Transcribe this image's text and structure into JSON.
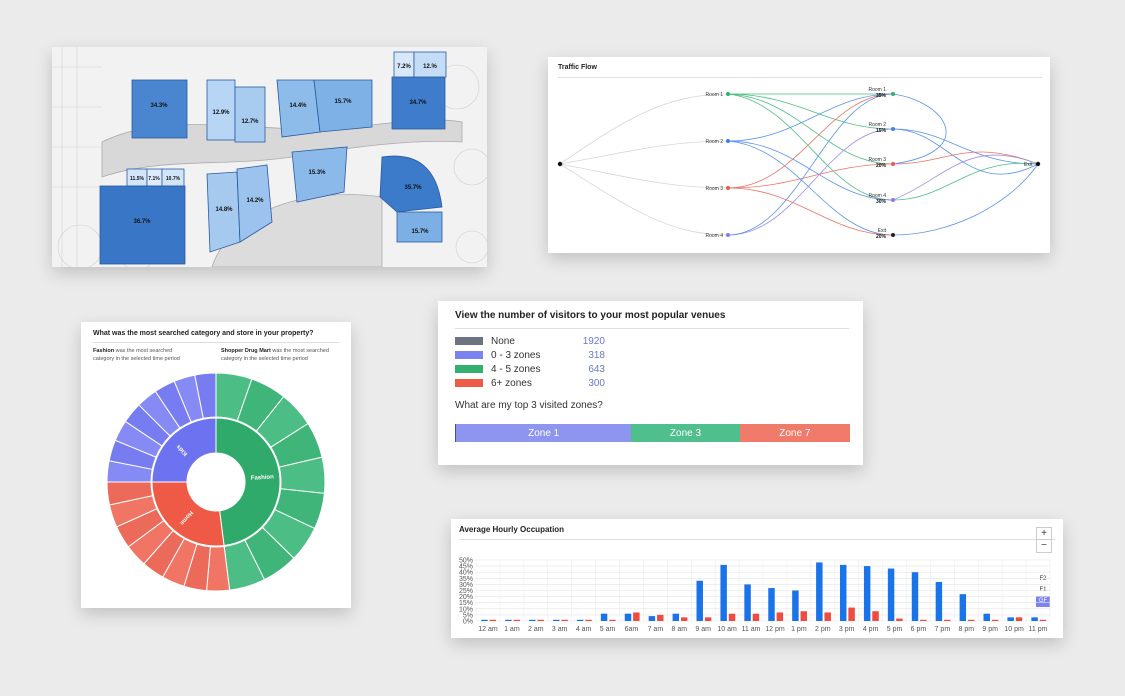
{
  "floorplan": {
    "zones": [
      {
        "label": "34.3%",
        "value": 34.3
      },
      {
        "label": "12.9%",
        "value": 12.9
      },
      {
        "label": "12.7%",
        "value": 12.7
      },
      {
        "label": "14.4%",
        "value": 14.4
      },
      {
        "label": "15.7%",
        "value": 15.7
      },
      {
        "label": "34.7%",
        "value": 34.7
      },
      {
        "label": "7.2%",
        "value": 7.2
      },
      {
        "label": "12.%",
        "value": 12.0
      },
      {
        "label": "11.5%",
        "value": 11.5
      },
      {
        "label": "7.1%",
        "value": 7.1
      },
      {
        "label": "10.7%",
        "value": 10.7
      },
      {
        "label": "36.7%",
        "value": 36.7
      },
      {
        "label": "14.8%",
        "value": 14.8
      },
      {
        "label": "14.2%",
        "value": 14.2
      },
      {
        "label": "15.3%",
        "value": 15.3
      },
      {
        "label": "35.7%",
        "value": 35.7
      },
      {
        "label": "15.7%",
        "value": 15.7
      }
    ]
  },
  "traffic": {
    "title": "Traffic Flow",
    "left_nodes": [
      {
        "label": "Room 1",
        "color": "#2bb36b"
      },
      {
        "label": "Room 2",
        "color": "#3d7fe8"
      },
      {
        "label": "Room 3",
        "color": "#e85a4a"
      },
      {
        "label": "Room 4",
        "color": "#8a7ae8"
      }
    ],
    "right_nodes": [
      {
        "label": "Room 1",
        "pct": "35%",
        "color": "#2bb36b"
      },
      {
        "label": "Room 2",
        "pct": "15%",
        "color": "#3d7fe8"
      },
      {
        "label": "Room 3",
        "pct": "20%",
        "color": "#e85a4a"
      },
      {
        "label": "Room 4",
        "pct": "30%",
        "color": "#8a7ae8"
      },
      {
        "label": "Exit",
        "pct": "20%",
        "color": "#222222"
      }
    ],
    "exit_label": "Exit"
  },
  "venues": {
    "title": "View the number of visitors to your most popular venues",
    "legend": [
      {
        "label": "None",
        "value": "1920",
        "color": "#6b7280"
      },
      {
        "label": "0 - 3 zones",
        "value": "318",
        "color": "#7b83f0"
      },
      {
        "label": "4 - 5 zones",
        "value": "643",
        "color": "#33b06f"
      },
      {
        "label": "6+ zones",
        "value": "300",
        "color": "#ee5a45"
      }
    ],
    "question": "What are my top 3 visited zones?",
    "bar": [
      {
        "label": "Zone 1",
        "color": "#8e95f0",
        "share": 0.445
      },
      {
        "label": "Zone 3",
        "color": "#4fc08d",
        "share": 0.275
      },
      {
        "label": "Zone 7",
        "color": "#f07b6a",
        "share": 0.28
      }
    ]
  },
  "searched": {
    "title": "What was the most searched category and store in your property?",
    "left_bold": "Fashion",
    "left_rest_1": " was the most searched",
    "left_rest_2": "category in the selected time period",
    "right_bold": "Shopper Drug Mart",
    "right_rest_1": " was the most searched",
    "right_rest_2": "category in the selected time period",
    "categories": [
      {
        "label": "Fashion",
        "color": "#2faa6a",
        "share": 0.48
      },
      {
        "label": "Home",
        "color": "#ee5a45",
        "share": 0.27
      },
      {
        "label": "Kids",
        "color": "#6d72f0",
        "share": 0.25
      }
    ]
  },
  "occupation": {
    "title": "Average Hourly Occupation",
    "zoom_in": "+",
    "zoom_out": "−",
    "floors": [
      "F2",
      "F1",
      "GF"
    ],
    "yticks": [
      "50%",
      "45%",
      "40%",
      "35%",
      "30%",
      "25%",
      "20%",
      "15%",
      "10%",
      "5%",
      "0%"
    ],
    "xticks": [
      "12 am",
      "1 am",
      "2 am",
      "3 am",
      "4 am",
      "5 am",
      "6am",
      "7 am",
      "8 am",
      "9 am",
      "10 am",
      "11 am",
      "12 pm",
      "1 pm",
      "2 pm",
      "3 pm",
      "4 pm",
      "5 pm",
      "6 pm",
      "7 pm",
      "8 pm",
      "9 pm",
      "10 pm",
      "11 pm"
    ]
  },
  "chart_data": {
    "type": "bar",
    "title": "Average Hourly Occupation",
    "categories": [
      "12 am",
      "1 am",
      "2 am",
      "3 am",
      "4 am",
      "5 am",
      "6am",
      "7 am",
      "8 am",
      "9 am",
      "10 am",
      "11 am",
      "12 pm",
      "1 pm",
      "2 pm",
      "3 pm",
      "4 pm",
      "5 pm",
      "6 pm",
      "7 pm",
      "8 pm",
      "9 pm",
      "10 pm",
      "11 pm"
    ],
    "series": [
      {
        "color": "#1a73e8",
        "values": [
          1,
          1,
          1,
          1,
          1,
          6,
          6,
          4,
          6,
          33,
          46,
          30,
          27,
          25,
          48,
          46,
          45,
          43,
          40,
          32,
          22,
          6,
          3,
          3
        ]
      },
      {
        "color": "#ef4b3f",
        "values": [
          1,
          1,
          1,
          1,
          1,
          1,
          7,
          5,
          3,
          3,
          6,
          6,
          7,
          8,
          7,
          11,
          8,
          2,
          1,
          1,
          1,
          1,
          3,
          1
        ]
      }
    ],
    "ylim": [
      0,
      50
    ],
    "grid": true
  }
}
